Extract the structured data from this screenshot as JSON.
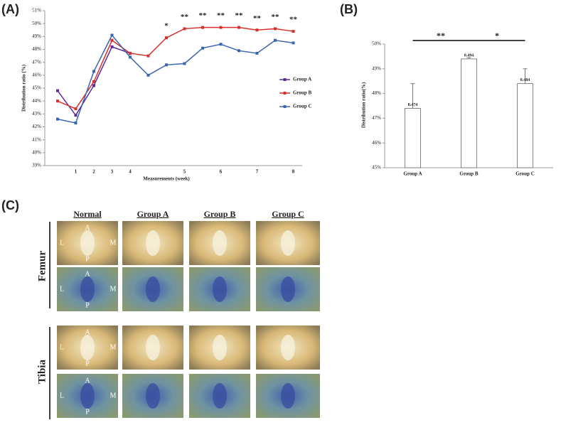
{
  "chart_data": [
    {
      "type": "line",
      "panel": "(A)",
      "xlabel": "Measurements (week)",
      "ylabel": "Distribution ratio (%)",
      "categories": [
        null,
        "1",
        "2",
        "3",
        "4",
        null,
        null,
        "5",
        null,
        "6",
        null,
        "7",
        null,
        "8"
      ],
      "series": [
        {
          "name": "Group A",
          "color": "#5b2c9a",
          "values": [
            44.8,
            42.9,
            45.2,
            48.2,
            47.7,
            null,
            null,
            null,
            null,
            null,
            null,
            null,
            null,
            null
          ]
        },
        {
          "name": "Group B",
          "color": "#d9302c",
          "values": [
            44.0,
            43.4,
            45.5,
            48.7,
            47.7,
            47.5,
            48.9,
            49.6,
            49.7,
            49.7,
            49.7,
            49.5,
            49.6,
            49.4
          ]
        },
        {
          "name": "Group C",
          "color": "#3a66b0",
          "values": [
            42.6,
            42.3,
            46.3,
            49.1,
            47.4,
            46.0,
            46.8,
            46.9,
            48.1,
            48.4,
            47.9,
            47.7,
            48.7,
            48.5
          ]
        }
      ],
      "significance": [
        null,
        null,
        null,
        null,
        null,
        null,
        "*",
        "**",
        "**",
        "**",
        "**",
        "**",
        "**",
        "**"
      ],
      "ylim": [
        39,
        51
      ],
      "yticks": [
        {
          "value": 39,
          "label": "39%"
        },
        {
          "value": 40,
          "label": "40%"
        },
        {
          "value": 41,
          "label": "41%"
        },
        {
          "value": 42,
          "label": "42%"
        },
        {
          "value": 43,
          "label": "43%"
        },
        {
          "value": 44,
          "label": "44%"
        },
        {
          "value": 45,
          "label": "45%"
        },
        {
          "value": 46,
          "label": "46%"
        },
        {
          "value": 47,
          "label": "47%"
        },
        {
          "value": 48,
          "label": "48%"
        },
        {
          "value": 49,
          "label": "49%"
        },
        {
          "value": 50,
          "label": "50%"
        },
        {
          "value": 51,
          "label": "51%"
        }
      ],
      "legend": "right"
    },
    {
      "type": "bar",
      "panel": "(B)",
      "ylabel": "Distribution ratio(%)",
      "categories": [
        "Group A",
        "Group B",
        "Group C"
      ],
      "values": [
        47.4,
        49.4,
        48.4
      ],
      "value_labels": [
        "0.474",
        "0.494",
        "0.484"
      ],
      "errors": [
        1.0,
        0.05,
        0.6
      ],
      "color": "#ffffff",
      "significance": [
        {
          "pair": [
            0,
            1
          ],
          "label": "**"
        },
        {
          "pair": [
            1,
            2
          ],
          "label": "*"
        }
      ],
      "ylim": [
        45,
        50
      ],
      "yticks": [
        {
          "value": 45,
          "label": "45%"
        },
        {
          "value": 46,
          "label": "46%"
        },
        {
          "value": 47,
          "label": "47%"
        },
        {
          "value": 48,
          "label": "48%"
        },
        {
          "value": 49,
          "label": "49%"
        },
        {
          "value": 50,
          "label": "50%"
        }
      ]
    }
  ],
  "panel_c": {
    "label": "(C)",
    "columns": [
      "Normal",
      "Group A",
      "Group B",
      "Group C"
    ],
    "rows": [
      "Femur",
      "Tibia"
    ],
    "markers": [
      "A",
      "P",
      "L",
      "M"
    ]
  }
}
